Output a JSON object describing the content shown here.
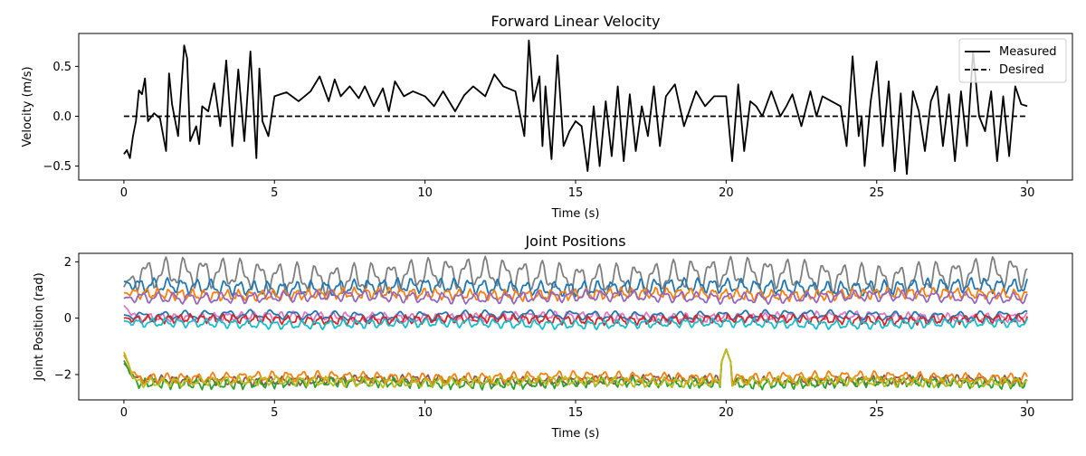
{
  "chart_data": [
    {
      "type": "line",
      "title": "Forward Linear Velocity",
      "xlabel": "Time (s)",
      "ylabel": "Velocity (m/s)",
      "xlim": [
        -1.5,
        31.5
      ],
      "ylim": [
        -0.64,
        0.83
      ],
      "xticks": [
        0,
        5,
        10,
        15,
        20,
        25,
        30
      ],
      "yticks": [
        -0.5,
        0.0,
        0.5
      ],
      "ytick_labels": [
        "−0.5",
        "0.0",
        "0.5"
      ],
      "grid": false,
      "legend": "top-right",
      "series": [
        {
          "name": "Measured",
          "style": "solid",
          "color": "#000000",
          "x": [
            0,
            0.1,
            0.2,
            0.3,
            0.4,
            0.5,
            0.6,
            0.7,
            0.8,
            1.0,
            1.2,
            1.4,
            1.5,
            1.6,
            1.8,
            2.0,
            2.1,
            2.2,
            2.4,
            2.5,
            2.6,
            2.8,
            3.0,
            3.2,
            3.4,
            3.6,
            3.8,
            4.0,
            4.2,
            4.4,
            4.5,
            4.6,
            4.8,
            5.0,
            5.4,
            5.8,
            6.2,
            6.5,
            6.8,
            7.0,
            7.2,
            7.5,
            7.8,
            8.0,
            8.3,
            8.6,
            8.8,
            9.0,
            9.3,
            9.6,
            10.0,
            10.3,
            10.6,
            11.0,
            11.3,
            11.6,
            12.0,
            12.3,
            12.6,
            13.0,
            13.3,
            13.45,
            13.6,
            13.8,
            13.9,
            14.0,
            14.2,
            14.4,
            14.6,
            14.8,
            15.0,
            15.2,
            15.4,
            15.6,
            15.8,
            16.0,
            16.2,
            16.4,
            16.6,
            16.8,
            17.0,
            17.2,
            17.4,
            17.6,
            17.8,
            18.0,
            18.3,
            18.6,
            19.0,
            19.3,
            19.6,
            20.0,
            20.2,
            20.4,
            20.6,
            20.8,
            21.0,
            21.2,
            21.5,
            21.8,
            22.0,
            22.2,
            22.5,
            22.8,
            23.0,
            23.2,
            23.5,
            23.8,
            24.0,
            24.2,
            24.4,
            24.5,
            24.6,
            24.8,
            25.0,
            25.2,
            25.4,
            25.6,
            25.8,
            26.0,
            26.2,
            26.4,
            26.6,
            26.8,
            27.0,
            27.2,
            27.4,
            27.6,
            27.8,
            28.0,
            28.2,
            28.4,
            28.6,
            28.8,
            29.0,
            29.2,
            29.4,
            29.6,
            29.8,
            30.0
          ],
          "values": [
            -0.38,
            -0.34,
            -0.42,
            -0.2,
            -0.05,
            0.26,
            0.22,
            0.38,
            -0.05,
            0.03,
            -0.02,
            -0.35,
            0.43,
            0.12,
            -0.2,
            0.71,
            0.58,
            -0.25,
            -0.1,
            -0.28,
            0.1,
            0.05,
            0.33,
            -0.1,
            0.56,
            -0.3,
            0.47,
            -0.25,
            0.65,
            -0.42,
            0.48,
            -0.05,
            -0.2,
            0.2,
            0.24,
            0.15,
            0.25,
            0.4,
            0.15,
            0.37,
            0.2,
            0.3,
            0.18,
            0.3,
            0.1,
            0.28,
            0.05,
            0.35,
            0.2,
            0.25,
            0.2,
            0.1,
            0.25,
            0.05,
            0.21,
            0.3,
            0.2,
            0.42,
            0.3,
            0.25,
            -0.2,
            0.76,
            0.15,
            0.4,
            -0.3,
            0.3,
            -0.43,
            0.61,
            -0.3,
            -0.15,
            -0.05,
            -0.1,
            -0.55,
            0.1,
            -0.5,
            0.15,
            -0.4,
            0.3,
            -0.45,
            0.22,
            -0.35,
            0.1,
            -0.2,
            0.3,
            -0.3,
            0.2,
            0.32,
            -0.1,
            0.25,
            0.1,
            0.2,
            0.2,
            -0.45,
            0.32,
            -0.35,
            0.15,
            0.1,
            0.0,
            0.25,
            0.0,
            0.1,
            0.22,
            -0.1,
            0.25,
            0.0,
            0.2,
            0.15,
            0.1,
            -0.3,
            0.6,
            -0.2,
            0.0,
            -0.5,
            0.15,
            0.55,
            -0.3,
            0.35,
            -0.55,
            0.23,
            -0.58,
            0.25,
            0.05,
            -0.35,
            0.15,
            0.3,
            -0.3,
            0.22,
            -0.45,
            0.25,
            -0.3,
            0.65,
            0.0,
            -0.15,
            0.25,
            -0.45,
            0.2,
            -0.4,
            0.3,
            0.12,
            0.1
          ]
        },
        {
          "name": "Desired",
          "style": "dashed",
          "color": "#000000",
          "x": [
            0,
            30
          ],
          "values": [
            0.0,
            0.0
          ]
        }
      ]
    },
    {
      "type": "line",
      "title": "Joint Positions",
      "xlabel": "Time (s)",
      "ylabel": "Joint Position (rad)",
      "xlim": [
        -1.5,
        31.5
      ],
      "ylim": [
        -2.9,
        2.3
      ],
      "xticks": [
        0,
        5,
        10,
        15,
        20,
        25,
        30
      ],
      "yticks": [
        -2,
        0,
        2
      ],
      "ytick_labels": [
        "−2",
        "0",
        "2"
      ],
      "grid": false,
      "series": [
        {
          "color": "#7f7f7f",
          "base": 1.5,
          "amp": 0.4,
          "freq": 1.6,
          "phase": 0.3,
          "start": 1.1
        },
        {
          "color": "#1f77b4",
          "base": 1.1,
          "amp": 0.2,
          "freq": 2.1,
          "phase": 1.2,
          "start": 1.3
        },
        {
          "color": "#ff7f0e",
          "base": 0.85,
          "amp": 0.15,
          "freq": 2.6,
          "phase": 2.1,
          "start": 0.9
        },
        {
          "color": "#9467bd",
          "base": 0.75,
          "amp": 0.15,
          "freq": 1.9,
          "phase": 0.7,
          "start": 0.7
        },
        {
          "color": "#e377c2",
          "base": 0.05,
          "amp": 0.12,
          "freq": 2.3,
          "phase": 1.9,
          "start": 0.45
        },
        {
          "color": "#1f77b4",
          "base": 0.1,
          "amp": 0.12,
          "freq": 1.4,
          "phase": 2.6,
          "start": 0.12
        },
        {
          "color": "#d62728",
          "base": -0.05,
          "amp": 0.12,
          "freq": 2.8,
          "phase": 0.2,
          "start": 0.0
        },
        {
          "color": "#17becf",
          "base": -0.2,
          "amp": 0.12,
          "freq": 2.2,
          "phase": 1.4,
          "start": -0.1
        },
        {
          "color": "#8c564b",
          "base": -2.2,
          "amp": 0.12,
          "freq": 2.5,
          "phase": 0.5,
          "start": -1.6
        },
        {
          "color": "#2ca02c",
          "base": -2.3,
          "amp": 0.14,
          "freq": 2.9,
          "phase": 1.6,
          "start": -1.5
        },
        {
          "color": "#ff7f0e",
          "base": -2.1,
          "amp": 0.14,
          "freq": 2.0,
          "phase": 2.4,
          "start": -1.3
        },
        {
          "color": "#bcbd22",
          "base": -2.25,
          "amp": 0.13,
          "freq": 2.4,
          "phase": 0.9,
          "start": -1.2
        }
      ]
    }
  ]
}
